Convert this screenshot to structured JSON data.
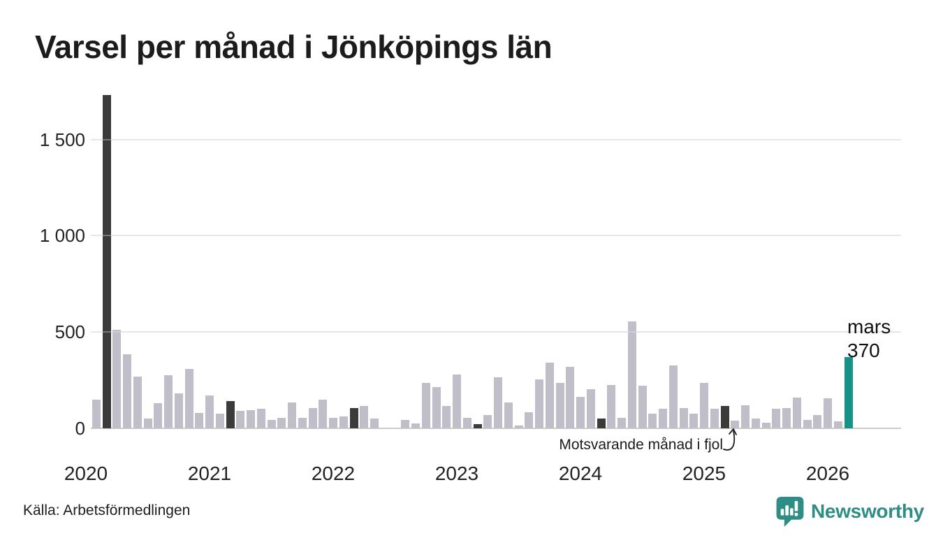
{
  "title": "Varsel per månad i Jönköpings län",
  "source": "Källa: Arbetsförmedlingen",
  "branding": {
    "name": "Newsworthy",
    "color": "#2e8d84"
  },
  "annotation": {
    "fjol_label": "Motsvarande månad i fjol"
  },
  "current_label": {
    "month": "mars",
    "value": "370"
  },
  "colors": {
    "bar": "#c0bec9",
    "fjol_bar": "#3b3b3b",
    "current_bar": "#17928a",
    "gridline": "#e4e4e4",
    "axis_line": "#cccccc",
    "text": "#1a1a1a"
  },
  "chart_data": {
    "type": "bar",
    "title": "Varsel per månad i Jönköpings län",
    "xlabel": "",
    "ylabel": "",
    "ylim": [
      0,
      1750
    ],
    "grid": true,
    "legend": "none",
    "y_axis": {
      "ticks": [
        {
          "value": 0,
          "label": "0"
        },
        {
          "value": 500,
          "label": "500"
        },
        {
          "value": 1000,
          "label": "1 000"
        },
        {
          "value": 1500,
          "label": "1 500"
        }
      ]
    },
    "x_axis": {
      "years": [
        {
          "label": "2020",
          "slot": 0
        },
        {
          "label": "2021",
          "slot": 12
        },
        {
          "label": "2022",
          "slot": 24
        },
        {
          "label": "2023",
          "slot": 36
        },
        {
          "label": "2024",
          "slot": 48
        },
        {
          "label": "2025",
          "slot": 60
        },
        {
          "label": "2026",
          "slot": 72
        }
      ]
    },
    "bars": [
      {
        "month": "jan 2020",
        "value": 0,
        "kind": "normal"
      },
      {
        "month": "feb 2020",
        "value": 150,
        "kind": "normal"
      },
      {
        "month": "mar 2020",
        "value": 1730,
        "kind": "fjol"
      },
      {
        "month": "apr 2020",
        "value": 510,
        "kind": "normal"
      },
      {
        "month": "maj 2020",
        "value": 385,
        "kind": "normal"
      },
      {
        "month": "jun 2020",
        "value": 270,
        "kind": "normal"
      },
      {
        "month": "jul 2020",
        "value": 50,
        "kind": "normal"
      },
      {
        "month": "aug 2020",
        "value": 130,
        "kind": "normal"
      },
      {
        "month": "sep 2020",
        "value": 275,
        "kind": "normal"
      },
      {
        "month": "okt 2020",
        "value": 180,
        "kind": "normal"
      },
      {
        "month": "nov 2020",
        "value": 310,
        "kind": "normal"
      },
      {
        "month": "dec 2020",
        "value": 80,
        "kind": "normal"
      },
      {
        "month": "jan 2021",
        "value": 170,
        "kind": "normal"
      },
      {
        "month": "feb 2021",
        "value": 75,
        "kind": "normal"
      },
      {
        "month": "mar 2021",
        "value": 140,
        "kind": "fjol"
      },
      {
        "month": "apr 2021",
        "value": 90,
        "kind": "normal"
      },
      {
        "month": "maj 2021",
        "value": 95,
        "kind": "normal"
      },
      {
        "month": "jun 2021",
        "value": 100,
        "kind": "normal"
      },
      {
        "month": "jul 2021",
        "value": 45,
        "kind": "normal"
      },
      {
        "month": "aug 2021",
        "value": 55,
        "kind": "normal"
      },
      {
        "month": "sep 2021",
        "value": 135,
        "kind": "normal"
      },
      {
        "month": "okt 2021",
        "value": 55,
        "kind": "normal"
      },
      {
        "month": "nov 2021",
        "value": 105,
        "kind": "normal"
      },
      {
        "month": "dec 2021",
        "value": 150,
        "kind": "normal"
      },
      {
        "month": "jan 2022",
        "value": 55,
        "kind": "normal"
      },
      {
        "month": "feb 2022",
        "value": 60,
        "kind": "normal"
      },
      {
        "month": "mar 2022",
        "value": 105,
        "kind": "fjol"
      },
      {
        "month": "apr 2022",
        "value": 115,
        "kind": "normal"
      },
      {
        "month": "maj 2022",
        "value": 50,
        "kind": "normal"
      },
      {
        "month": "jun 2022",
        "value": 0,
        "kind": "normal"
      },
      {
        "month": "jul 2022",
        "value": 0,
        "kind": "normal"
      },
      {
        "month": "aug 2022",
        "value": 45,
        "kind": "normal"
      },
      {
        "month": "sep 2022",
        "value": 25,
        "kind": "normal"
      },
      {
        "month": "okt 2022",
        "value": 235,
        "kind": "normal"
      },
      {
        "month": "nov 2022",
        "value": 215,
        "kind": "normal"
      },
      {
        "month": "dec 2022",
        "value": 115,
        "kind": "normal"
      },
      {
        "month": "jan 2023",
        "value": 280,
        "kind": "normal"
      },
      {
        "month": "feb 2023",
        "value": 55,
        "kind": "normal"
      },
      {
        "month": "mar 2023",
        "value": 20,
        "kind": "fjol"
      },
      {
        "month": "apr 2023",
        "value": 70,
        "kind": "normal"
      },
      {
        "month": "maj 2023",
        "value": 265,
        "kind": "normal"
      },
      {
        "month": "jun 2023",
        "value": 135,
        "kind": "normal"
      },
      {
        "month": "jul 2023",
        "value": 15,
        "kind": "normal"
      },
      {
        "month": "aug 2023",
        "value": 85,
        "kind": "normal"
      },
      {
        "month": "sep 2023",
        "value": 255,
        "kind": "normal"
      },
      {
        "month": "okt 2023",
        "value": 340,
        "kind": "normal"
      },
      {
        "month": "nov 2023",
        "value": 235,
        "kind": "normal"
      },
      {
        "month": "dec 2023",
        "value": 320,
        "kind": "normal"
      },
      {
        "month": "jan 2024",
        "value": 165,
        "kind": "normal"
      },
      {
        "month": "feb 2024",
        "value": 205,
        "kind": "normal"
      },
      {
        "month": "mar 2024",
        "value": 50,
        "kind": "fjol"
      },
      {
        "month": "apr 2024",
        "value": 225,
        "kind": "normal"
      },
      {
        "month": "maj 2024",
        "value": 55,
        "kind": "normal"
      },
      {
        "month": "jun 2024",
        "value": 555,
        "kind": "normal"
      },
      {
        "month": "jul 2024",
        "value": 220,
        "kind": "normal"
      },
      {
        "month": "aug 2024",
        "value": 75,
        "kind": "normal"
      },
      {
        "month": "sep 2024",
        "value": 100,
        "kind": "normal"
      },
      {
        "month": "okt 2024",
        "value": 325,
        "kind": "normal"
      },
      {
        "month": "nov 2024",
        "value": 105,
        "kind": "normal"
      },
      {
        "month": "dec 2024",
        "value": 75,
        "kind": "normal"
      },
      {
        "month": "jan 2025",
        "value": 235,
        "kind": "normal"
      },
      {
        "month": "feb 2025",
        "value": 100,
        "kind": "normal"
      },
      {
        "month": "mar 2025",
        "value": 115,
        "kind": "fjol"
      },
      {
        "month": "apr 2025",
        "value": 40,
        "kind": "normal"
      },
      {
        "month": "maj 2025",
        "value": 120,
        "kind": "normal"
      },
      {
        "month": "jun 2025",
        "value": 50,
        "kind": "normal"
      },
      {
        "month": "jul 2025",
        "value": 30,
        "kind": "normal"
      },
      {
        "month": "aug 2025",
        "value": 100,
        "kind": "normal"
      },
      {
        "month": "sep 2025",
        "value": 105,
        "kind": "normal"
      },
      {
        "month": "okt 2025",
        "value": 160,
        "kind": "normal"
      },
      {
        "month": "nov 2025",
        "value": 45,
        "kind": "normal"
      },
      {
        "month": "dec 2025",
        "value": 70,
        "kind": "normal"
      },
      {
        "month": "jan 2026",
        "value": 155,
        "kind": "normal"
      },
      {
        "month": "feb 2026",
        "value": 35,
        "kind": "normal"
      },
      {
        "month": "mar 2026",
        "value": 370,
        "kind": "current"
      }
    ]
  }
}
